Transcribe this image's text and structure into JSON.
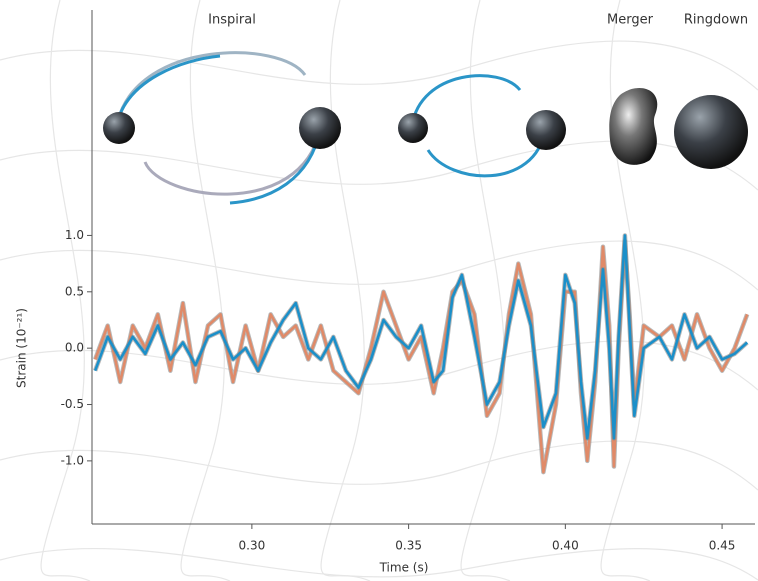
{
  "chart_data": {
    "type": "line",
    "annotations": [
      "Inspiral",
      "Merger",
      "Ringdown"
    ],
    "x_label": "Time (s)",
    "y_label": "Strain (10⁻²¹)",
    "x": [
      0.25,
      0.254,
      0.258,
      0.262,
      0.266,
      0.27,
      0.274,
      0.278,
      0.282,
      0.286,
      0.29,
      0.294,
      0.298,
      0.302,
      0.306,
      0.31,
      0.314,
      0.318,
      0.322,
      0.326,
      0.33,
      0.334,
      0.338,
      0.342,
      0.346,
      0.35,
      0.354,
      0.358,
      0.361,
      0.364,
      0.367,
      0.371,
      0.375,
      0.379,
      0.382,
      0.385,
      0.389,
      0.393,
      0.397,
      0.4,
      0.403,
      0.405,
      0.407,
      0.4095,
      0.412,
      0.414,
      0.4155,
      0.417,
      0.419,
      0.4205,
      0.422,
      0.425,
      0.43,
      0.434,
      0.438,
      0.442,
      0.446,
      0.45,
      0.454,
      0.458
    ],
    "series": [
      {
        "color": "#e08a68",
        "values": [
          -0.1,
          0.2,
          -0.3,
          0.2,
          0.0,
          0.3,
          -0.2,
          0.4,
          -0.3,
          0.2,
          0.3,
          -0.3,
          0.2,
          -0.2,
          0.3,
          0.1,
          0.2,
          -0.1,
          0.2,
          -0.2,
          -0.3,
          -0.4,
          0.0,
          0.5,
          0.2,
          -0.1,
          0.1,
          -0.4,
          0.0,
          0.5,
          0.6,
          0.3,
          -0.6,
          -0.4,
          0.3,
          0.75,
          0.3,
          -1.1,
          -0.5,
          0.5,
          0.5,
          -0.4,
          -1.0,
          -0.3,
          0.9,
          0.2,
          -1.05,
          0.0,
          0.95,
          0.3,
          -0.5,
          0.2,
          0.1,
          0.2,
          -0.1,
          0.3,
          0.0,
          -0.2,
          0.0,
          0.3
        ]
      },
      {
        "color": "#1b8fc9",
        "values": [
          -0.2,
          0.1,
          -0.1,
          0.1,
          -0.05,
          0.2,
          -0.1,
          0.05,
          -0.15,
          0.1,
          0.15,
          -0.1,
          0.0,
          -0.2,
          0.05,
          0.25,
          0.4,
          0.0,
          -0.1,
          0.1,
          -0.2,
          -0.35,
          -0.1,
          0.25,
          0.1,
          0.0,
          0.2,
          -0.3,
          -0.2,
          0.45,
          0.65,
          0.1,
          -0.5,
          -0.3,
          0.2,
          0.6,
          0.2,
          -0.7,
          -0.4,
          0.65,
          0.4,
          -0.3,
          -0.8,
          -0.2,
          0.7,
          0.0,
          -0.8,
          0.1,
          1.0,
          0.2,
          -0.6,
          0.0,
          0.1,
          -0.1,
          0.3,
          0.0,
          0.1,
          -0.1,
          -0.05,
          0.05
        ]
      }
    ],
    "xlim": [
      0.249,
      0.4605
    ],
    "ylim": [
      -1.56,
      3.0
    ],
    "xticks": [
      {
        "value": 0.3,
        "label": "0.30"
      },
      {
        "value": 0.35,
        "label": "0.35"
      },
      {
        "value": 0.4,
        "label": "0.40"
      },
      {
        "value": 0.45,
        "label": "0.45"
      }
    ],
    "yticks": [
      {
        "value": 1,
        "label": "1.0"
      },
      {
        "value": 0.5,
        "label": "0.5"
      },
      {
        "value": 0,
        "label": "0.0"
      },
      {
        "value": -0.5,
        "label": "-0.5"
      },
      {
        "value": -1,
        "label": "-1.0"
      }
    ],
    "grid": false
  }
}
